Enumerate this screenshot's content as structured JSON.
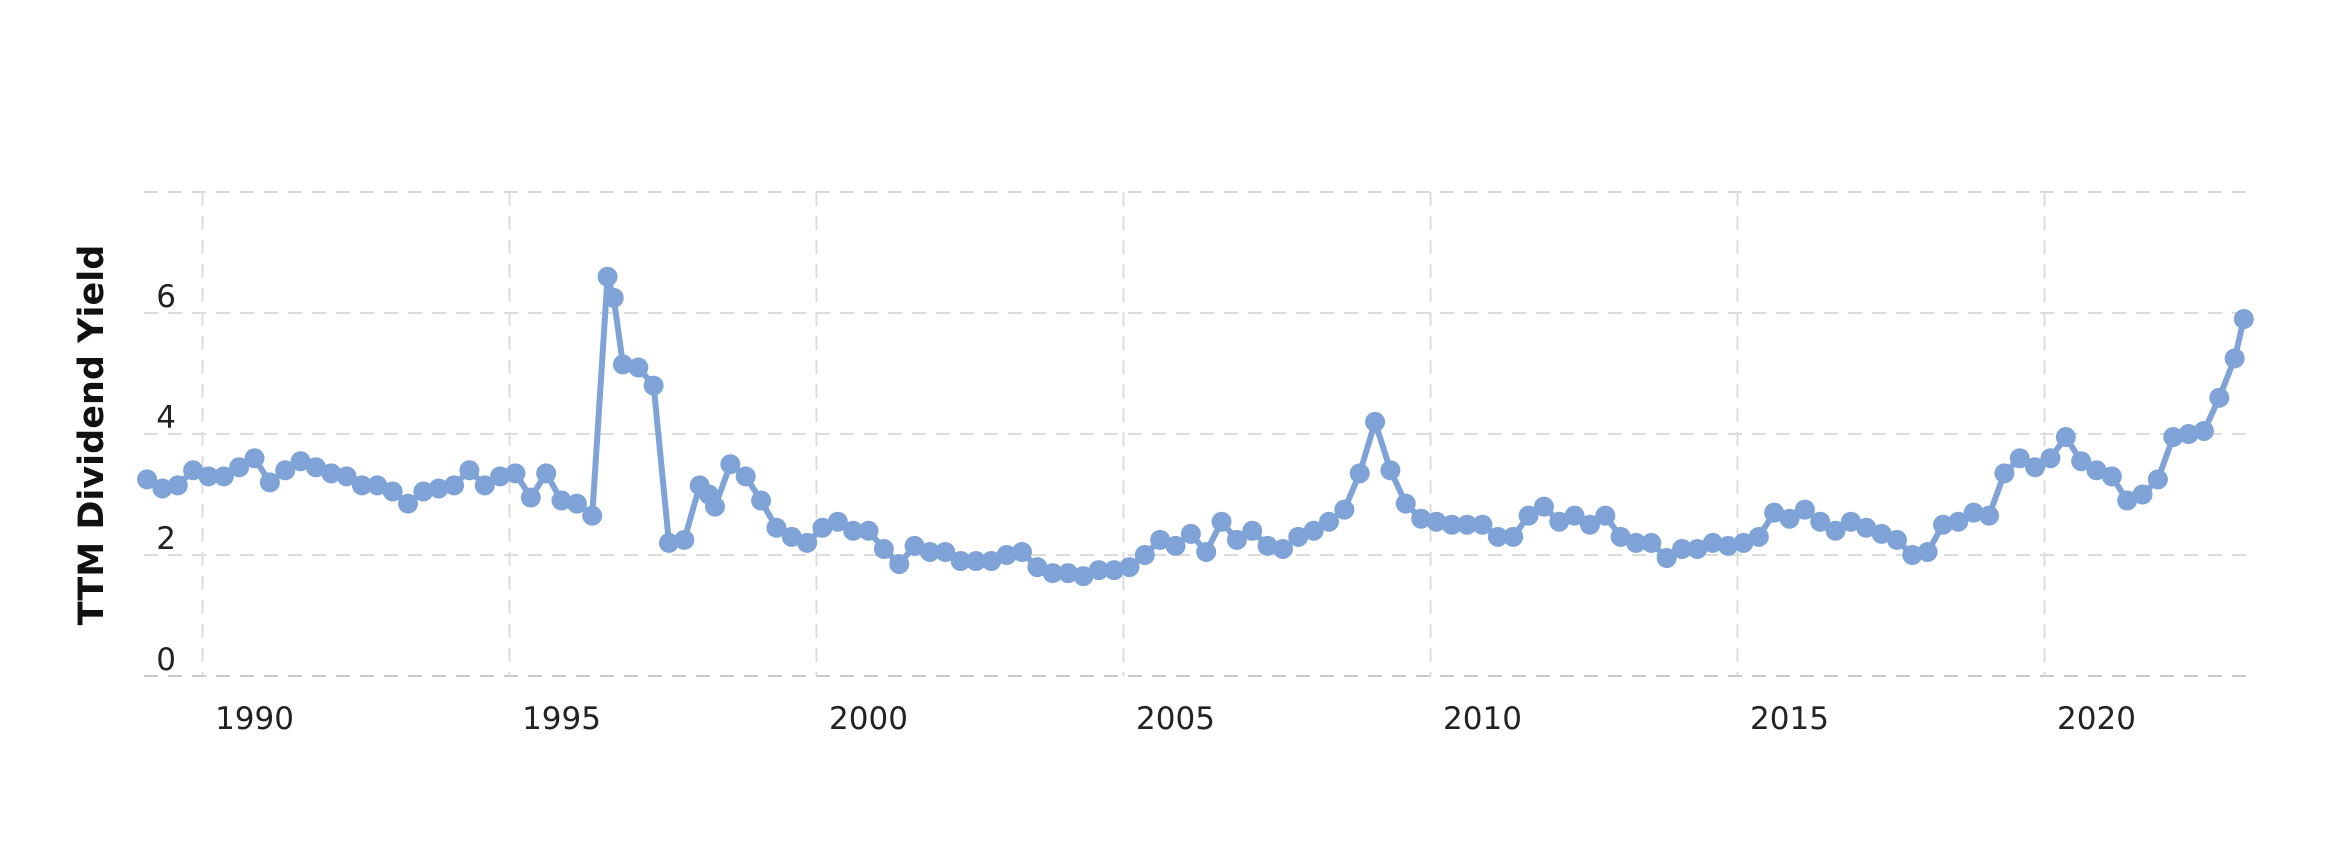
{
  "chart_data": {
    "type": "line",
    "title": "",
    "xlabel": "",
    "ylabel": "TTM Dividend Yield",
    "ylim": [
      0,
      8
    ],
    "xlim": [
      1988.2,
      2022.5
    ],
    "y_ticks": [
      0,
      2,
      4,
      6
    ],
    "y_tick_labels": [
      "0",
      "2",
      "4",
      "6"
    ],
    "x_ticks": [
      1990,
      1995,
      2000,
      2005,
      2010,
      2015,
      2020
    ],
    "x_tick_labels": [
      "1990",
      "1995",
      "2000",
      "2005",
      "2010",
      "2015",
      "2020"
    ],
    "grid": true,
    "legend": "none",
    "colors": {
      "series": "#7fa3d6",
      "grid": "#dcdcdc",
      "text": "#222222"
    },
    "series": [
      {
        "x": [
          1988.25,
          1988.5,
          1988.75,
          1989.0,
          1989.25,
          1989.5,
          1989.75,
          1990.0,
          1990.25,
          1990.5,
          1990.75,
          1991.0,
          1991.25,
          1991.5,
          1991.75,
          1992.0,
          1992.25,
          1992.5,
          1992.75,
          1993.0,
          1993.25,
          1993.5,
          1993.75,
          1994.0,
          1994.25,
          1994.5,
          1994.75,
          1995.0,
          1995.25,
          1995.5,
          1995.75,
          1995.85,
          1996.0,
          1996.25,
          1996.5,
          1996.75,
          1997.0,
          1997.25,
          1997.4,
          1997.5,
          1997.75,
          1998.0,
          1998.25,
          1998.5,
          1998.75,
          1999.0,
          1999.25,
          1999.5,
          1999.75,
          2000.0,
          2000.25,
          2000.5,
          2000.75,
          2001.0,
          2001.25,
          2001.5,
          2001.75,
          2002.0,
          2002.25,
          2002.5,
          2002.75,
          2003.0,
          2003.25,
          2003.5,
          2003.75,
          2004.0,
          2004.25,
          2004.5,
          2004.75,
          2005.0,
          2005.25,
          2005.5,
          2005.75,
          2006.0,
          2006.25,
          2006.5,
          2006.75,
          2007.0,
          2007.25,
          2007.5,
          2007.75,
          2008.0,
          2008.25,
          2008.5,
          2008.75,
          2009.0,
          2009.25,
          2009.5,
          2009.75,
          2010.0,
          2010.25,
          2010.5,
          2010.75,
          2011.0,
          2011.25,
          2011.5,
          2011.75,
          2012.0,
          2012.25,
          2012.5,
          2012.75,
          2013.0,
          2013.25,
          2013.5,
          2013.75,
          2014.0,
          2014.25,
          2014.5,
          2014.75,
          2015.0,
          2015.25,
          2015.5,
          2015.75,
          2016.0,
          2016.25,
          2016.5,
          2016.75,
          2017.0,
          2017.25,
          2017.5,
          2017.75,
          2018.0,
          2018.25,
          2018.5,
          2018.75,
          2019.0,
          2019.25,
          2019.5,
          2019.75,
          2020.0,
          2020.25,
          2020.5,
          2020.75,
          2021.0,
          2021.25,
          2021.5,
          2021.75,
          2022.0,
          2022.25,
          2022.4
        ],
        "values": [
          3.25,
          3.1,
          3.15,
          3.4,
          3.3,
          3.3,
          3.45,
          3.6,
          3.2,
          3.4,
          3.55,
          3.45,
          3.35,
          3.3,
          3.15,
          3.15,
          3.05,
          2.85,
          3.05,
          3.1,
          3.15,
          3.4,
          3.15,
          3.3,
          3.35,
          2.95,
          3.35,
          2.9,
          2.85,
          2.65,
          6.6,
          6.25,
          5.15,
          5.1,
          4.8,
          2.2,
          2.25,
          3.15,
          3.0,
          2.8,
          3.5,
          3.3,
          2.9,
          2.45,
          2.3,
          2.2,
          2.45,
          2.55,
          2.4,
          2.4,
          2.1,
          1.85,
          2.15,
          2.05,
          2.05,
          1.9,
          1.9,
          1.9,
          2.0,
          2.05,
          1.8,
          1.7,
          1.7,
          1.65,
          1.75,
          1.75,
          1.8,
          2.0,
          2.25,
          2.15,
          2.35,
          2.05,
          2.55,
          2.25,
          2.4,
          2.15,
          2.1,
          2.3,
          2.4,
          2.55,
          2.75,
          3.35,
          4.2,
          3.4,
          2.85,
          2.6,
          2.55,
          2.5,
          2.5,
          2.5,
          2.3,
          2.3,
          2.65,
          2.8,
          2.55,
          2.65,
          2.5,
          2.65,
          2.3,
          2.2,
          2.2,
          1.95,
          2.1,
          2.1,
          2.2,
          2.15,
          2.2,
          2.3,
          2.7,
          2.6,
          2.75,
          2.55,
          2.4,
          2.55,
          2.45,
          2.35,
          2.25,
          2.0,
          2.05,
          2.5,
          2.55,
          2.7,
          2.65,
          3.35,
          3.6,
          3.45,
          3.6,
          3.95,
          3.55,
          3.4,
          3.3,
          2.9,
          3.0,
          3.25,
          3.95,
          4.0,
          4.05,
          4.6,
          5.25,
          5.9
        ]
      }
    ]
  }
}
